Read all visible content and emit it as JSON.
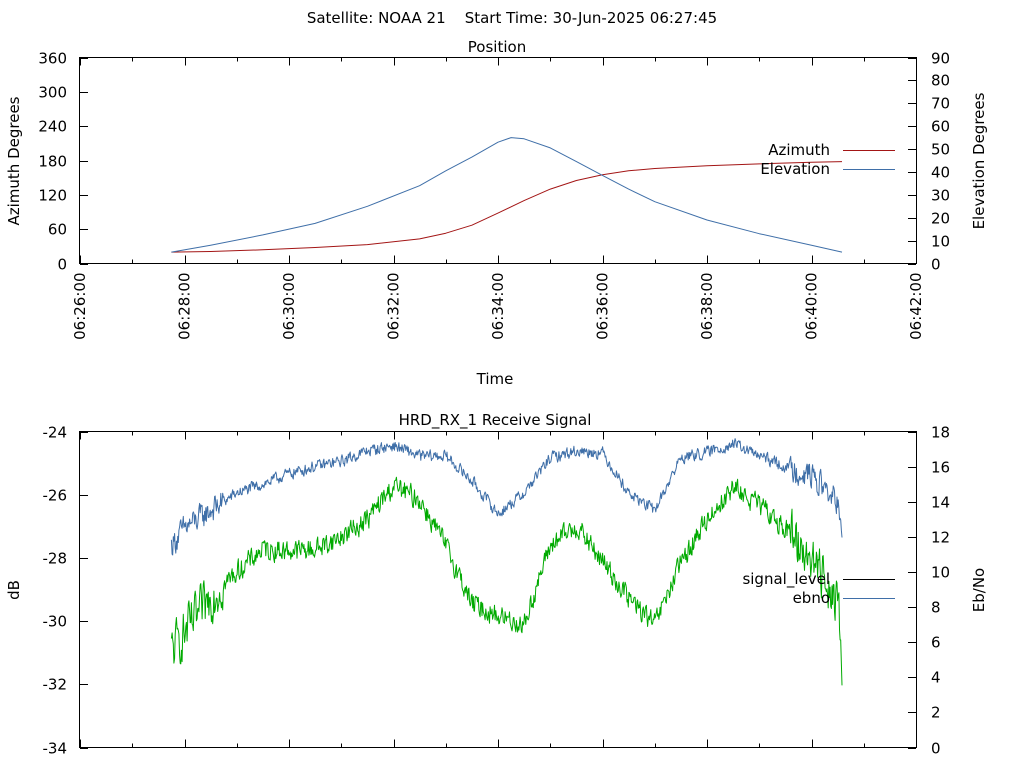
{
  "header": {
    "title": "Satellite: NOAA 21    Start Time: 30-Jun-2025 06:27:45"
  },
  "chart_data": [
    {
      "type": "line",
      "title": "Position",
      "xlabel": "Time",
      "ylabel": "Azimuth Degrees",
      "y2label": "Elevation Degrees",
      "x_ticks": [
        "06:26:00",
        "06:28:00",
        "06:30:00",
        "06:32:00",
        "06:34:00",
        "06:36:00",
        "06:38:00",
        "06:40:00",
        "06:42:00"
      ],
      "xlim": [
        "06:26:00",
        "06:42:00"
      ],
      "ylim": [
        0,
        360
      ],
      "y_ticks": [
        0,
        60,
        120,
        180,
        240,
        300,
        360
      ],
      "y2lim": [
        0,
        90
      ],
      "y2_ticks": [
        0,
        10,
        20,
        30,
        40,
        50,
        60,
        70,
        80,
        90
      ],
      "grid": false,
      "legend_position": "right",
      "series": [
        {
          "name": "Azimuth",
          "axis": "left",
          "color": "#a31515",
          "x": [
            "06:27:45",
            "06:28:30",
            "06:29:30",
            "06:30:30",
            "06:31:30",
            "06:32:30",
            "06:33:00",
            "06:33:30",
            "06:34:00",
            "06:34:30",
            "06:35:00",
            "06:35:30",
            "06:36:00",
            "06:36:30",
            "06:37:00",
            "06:38:00",
            "06:39:00",
            "06:40:00",
            "06:40:35"
          ],
          "values": [
            20,
            21,
            24,
            28,
            33,
            43,
            53,
            67,
            88,
            110,
            130,
            145,
            155,
            162,
            166,
            171,
            174,
            177,
            178
          ]
        },
        {
          "name": "Elevation",
          "axis": "right",
          "color": "#3f6fa8",
          "x": [
            "06:27:45",
            "06:28:30",
            "06:29:30",
            "06:30:30",
            "06:31:30",
            "06:32:30",
            "06:33:00",
            "06:33:30",
            "06:34:00",
            "06:34:15",
            "06:34:30",
            "06:35:00",
            "06:35:30",
            "06:36:00",
            "06:36:30",
            "06:37:00",
            "06:38:00",
            "06:39:00",
            "06:40:00",
            "06:40:35"
          ],
          "values": [
            5,
            8,
            12.5,
            17.5,
            25,
            34,
            40.5,
            46.5,
            53,
            55,
            54.5,
            50.5,
            44.5,
            38.5,
            32.5,
            27,
            19,
            13,
            8,
            5
          ]
        }
      ]
    },
    {
      "type": "line",
      "title": "HRD_RX_1 Receive Signal",
      "xlabel": "",
      "ylabel": "dB",
      "y2label": "Eb/No",
      "xlim": [
        "06:26:00",
        "06:42:00"
      ],
      "ylim": [
        -34,
        -24
      ],
      "y_ticks": [
        -34,
        -32,
        -30,
        -28,
        -26,
        -24
      ],
      "y2lim": [
        0,
        18
      ],
      "y2_ticks": [
        0,
        2,
        4,
        6,
        8,
        10,
        12,
        14,
        16,
        18
      ],
      "grid": false,
      "legend_position": "right",
      "series": [
        {
          "name": "signal_level",
          "axis": "left",
          "color": "#000000",
          "x": [],
          "values": []
        },
        {
          "name": "ebno",
          "axis": "right",
          "color": "#3f6fa8",
          "x": [
            "06:27:45",
            "06:28:00",
            "06:28:30",
            "06:29:00",
            "06:29:30",
            "06:30:00",
            "06:30:30",
            "06:31:00",
            "06:31:30",
            "06:32:00",
            "06:32:30",
            "06:33:00",
            "06:33:30",
            "06:34:00",
            "06:34:30",
            "06:35:00",
            "06:35:30",
            "06:36:00",
            "06:36:30",
            "06:37:00",
            "06:37:30",
            "06:38:00",
            "06:38:30",
            "06:39:00",
            "06:39:30",
            "06:40:00",
            "06:40:30",
            "06:40:35"
          ],
          "values": [
            11.5,
            12.5,
            13.5,
            14.5,
            15.0,
            15.6,
            16.0,
            16.3,
            16.9,
            17.2,
            16.6,
            16.6,
            15.2,
            13.3,
            14.5,
            16.5,
            16.9,
            16.8,
            14.5,
            13.5,
            16.5,
            16.8,
            17.3,
            16.6,
            16.0,
            15.5,
            14.0,
            11.5
          ]
        },
        {
          "name": "",
          "axis": "right",
          "color": "#00aa00",
          "x": [
            "06:27:45",
            "06:28:00",
            "06:28:30",
            "06:29:00",
            "06:29:30",
            "06:30:00",
            "06:30:30",
            "06:31:00",
            "06:31:30",
            "06:32:00",
            "06:32:30",
            "06:33:00",
            "06:33:30",
            "06:34:00",
            "06:34:30",
            "06:35:00",
            "06:35:30",
            "06:36:00",
            "06:36:30",
            "06:37:00",
            "06:37:30",
            "06:38:00",
            "06:38:30",
            "06:39:00",
            "06:39:30",
            "06:40:00",
            "06:40:30",
            "06:40:35"
          ],
          "values": [
            5.5,
            6.5,
            8.5,
            10.0,
            11.3,
            11.2,
            11.3,
            12.0,
            13.0,
            14.9,
            14.1,
            11.5,
            8.2,
            7.5,
            7.0,
            11.5,
            12.6,
            10.6,
            8.5,
            7.0,
            10.5,
            13.0,
            14.8,
            13.8,
            12.5,
            10.8,
            8.5,
            5.0
          ]
        }
      ]
    }
  ]
}
